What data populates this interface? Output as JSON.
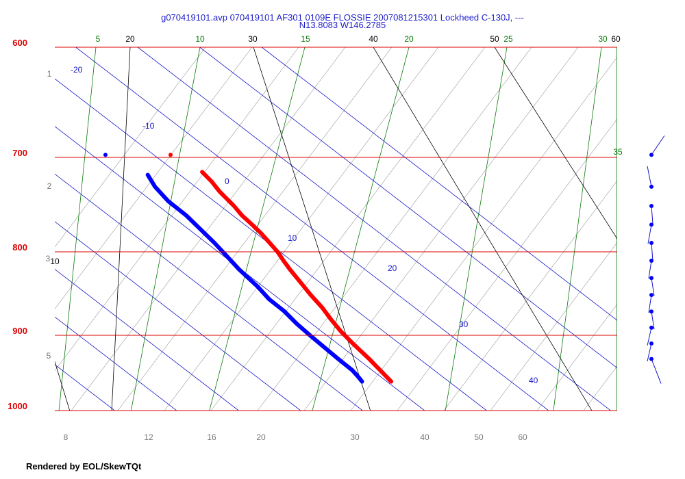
{
  "title_line1": "g070419101.avp 070419101 AF301 0109E FLOSSIE  2007081215301 Lockheed C-130J, ---",
  "title_line2": "N13.8083 W146.2785",
  "footer": "Rendered by EOL/SkewTQt",
  "colors": {
    "isobar": "#dd0000",
    "isotherm": "#1414c8",
    "dry_adiabat": "#000000",
    "moist_adiabat": "#9a9a9a",
    "mixing_ratio": "#0a7a0a",
    "temperature": "#ff0000",
    "dewpoint": "#0000ff",
    "title": "#1f1fcc"
  },
  "chart_data": {
    "type": "skew-t",
    "pressure_range_hPa": [
      600,
      1000
    ],
    "pressure_levels": [
      "600",
      "700",
      "800",
      "900",
      "1000"
    ],
    "isotherm_labels": [
      "-20",
      "-10",
      "0",
      "10",
      "20",
      "30",
      "40"
    ],
    "dry_adiabat_labels": [
      "20",
      "30",
      "40",
      "50",
      "60",
      "10"
    ],
    "mixing_ratio_labels": [
      "5",
      "10",
      "15",
      "20",
      "25",
      "30",
      "35"
    ],
    "height_labels": [
      "1",
      "2",
      "3",
      "5"
    ],
    "bottom_labels": [
      "8",
      "12",
      "16",
      "20",
      "30",
      "40",
      "50",
      "60"
    ],
    "series": [
      {
        "name": "temperature",
        "points": [
          [
            715,
            24.2
          ],
          [
            725,
            23.7
          ],
          [
            735,
            22.9
          ],
          [
            750,
            22.2
          ],
          [
            760,
            21.5
          ],
          [
            770,
            21.2
          ],
          [
            780,
            20.8
          ],
          [
            790,
            20.2
          ],
          [
            800,
            19.6
          ],
          [
            810,
            18.7
          ],
          [
            820,
            17.9
          ],
          [
            835,
            16.9
          ],
          [
            850,
            15.9
          ],
          [
            865,
            15.1
          ],
          [
            880,
            14.0
          ],
          [
            895,
            13.1
          ],
          [
            910,
            12.5
          ],
          [
            930,
            11.9
          ],
          [
            950,
            11.1
          ],
          [
            960,
            10.7
          ]
        ]
      },
      {
        "name": "dewpoint",
        "points": [
          [
            718,
            14.8
          ],
          [
            730,
            13.5
          ],
          [
            745,
            12.6
          ],
          [
            760,
            12.5
          ],
          [
            775,
            11.9
          ],
          [
            790,
            11.3
          ],
          [
            805,
            10.5
          ],
          [
            820,
            9.7
          ],
          [
            840,
            9.1
          ],
          [
            855,
            8.3
          ],
          [
            870,
            8.2
          ],
          [
            885,
            7.6
          ],
          [
            900,
            7.3
          ],
          [
            915,
            7.1
          ],
          [
            930,
            6.9
          ],
          [
            945,
            6.8
          ],
          [
            955,
            6.3
          ],
          [
            960,
            6.0
          ]
        ]
      }
    ],
    "top_points": [
      {
        "series": "dewpoint",
        "p": 698,
        "t": 12.2
      },
      {
        "series": "temperature",
        "p": 698,
        "t": 22.7
      }
    ],
    "wind_levels_hPa": [
      698,
      730,
      750,
      770,
      790,
      810,
      830,
      850,
      870,
      890,
      910,
      930
    ]
  }
}
